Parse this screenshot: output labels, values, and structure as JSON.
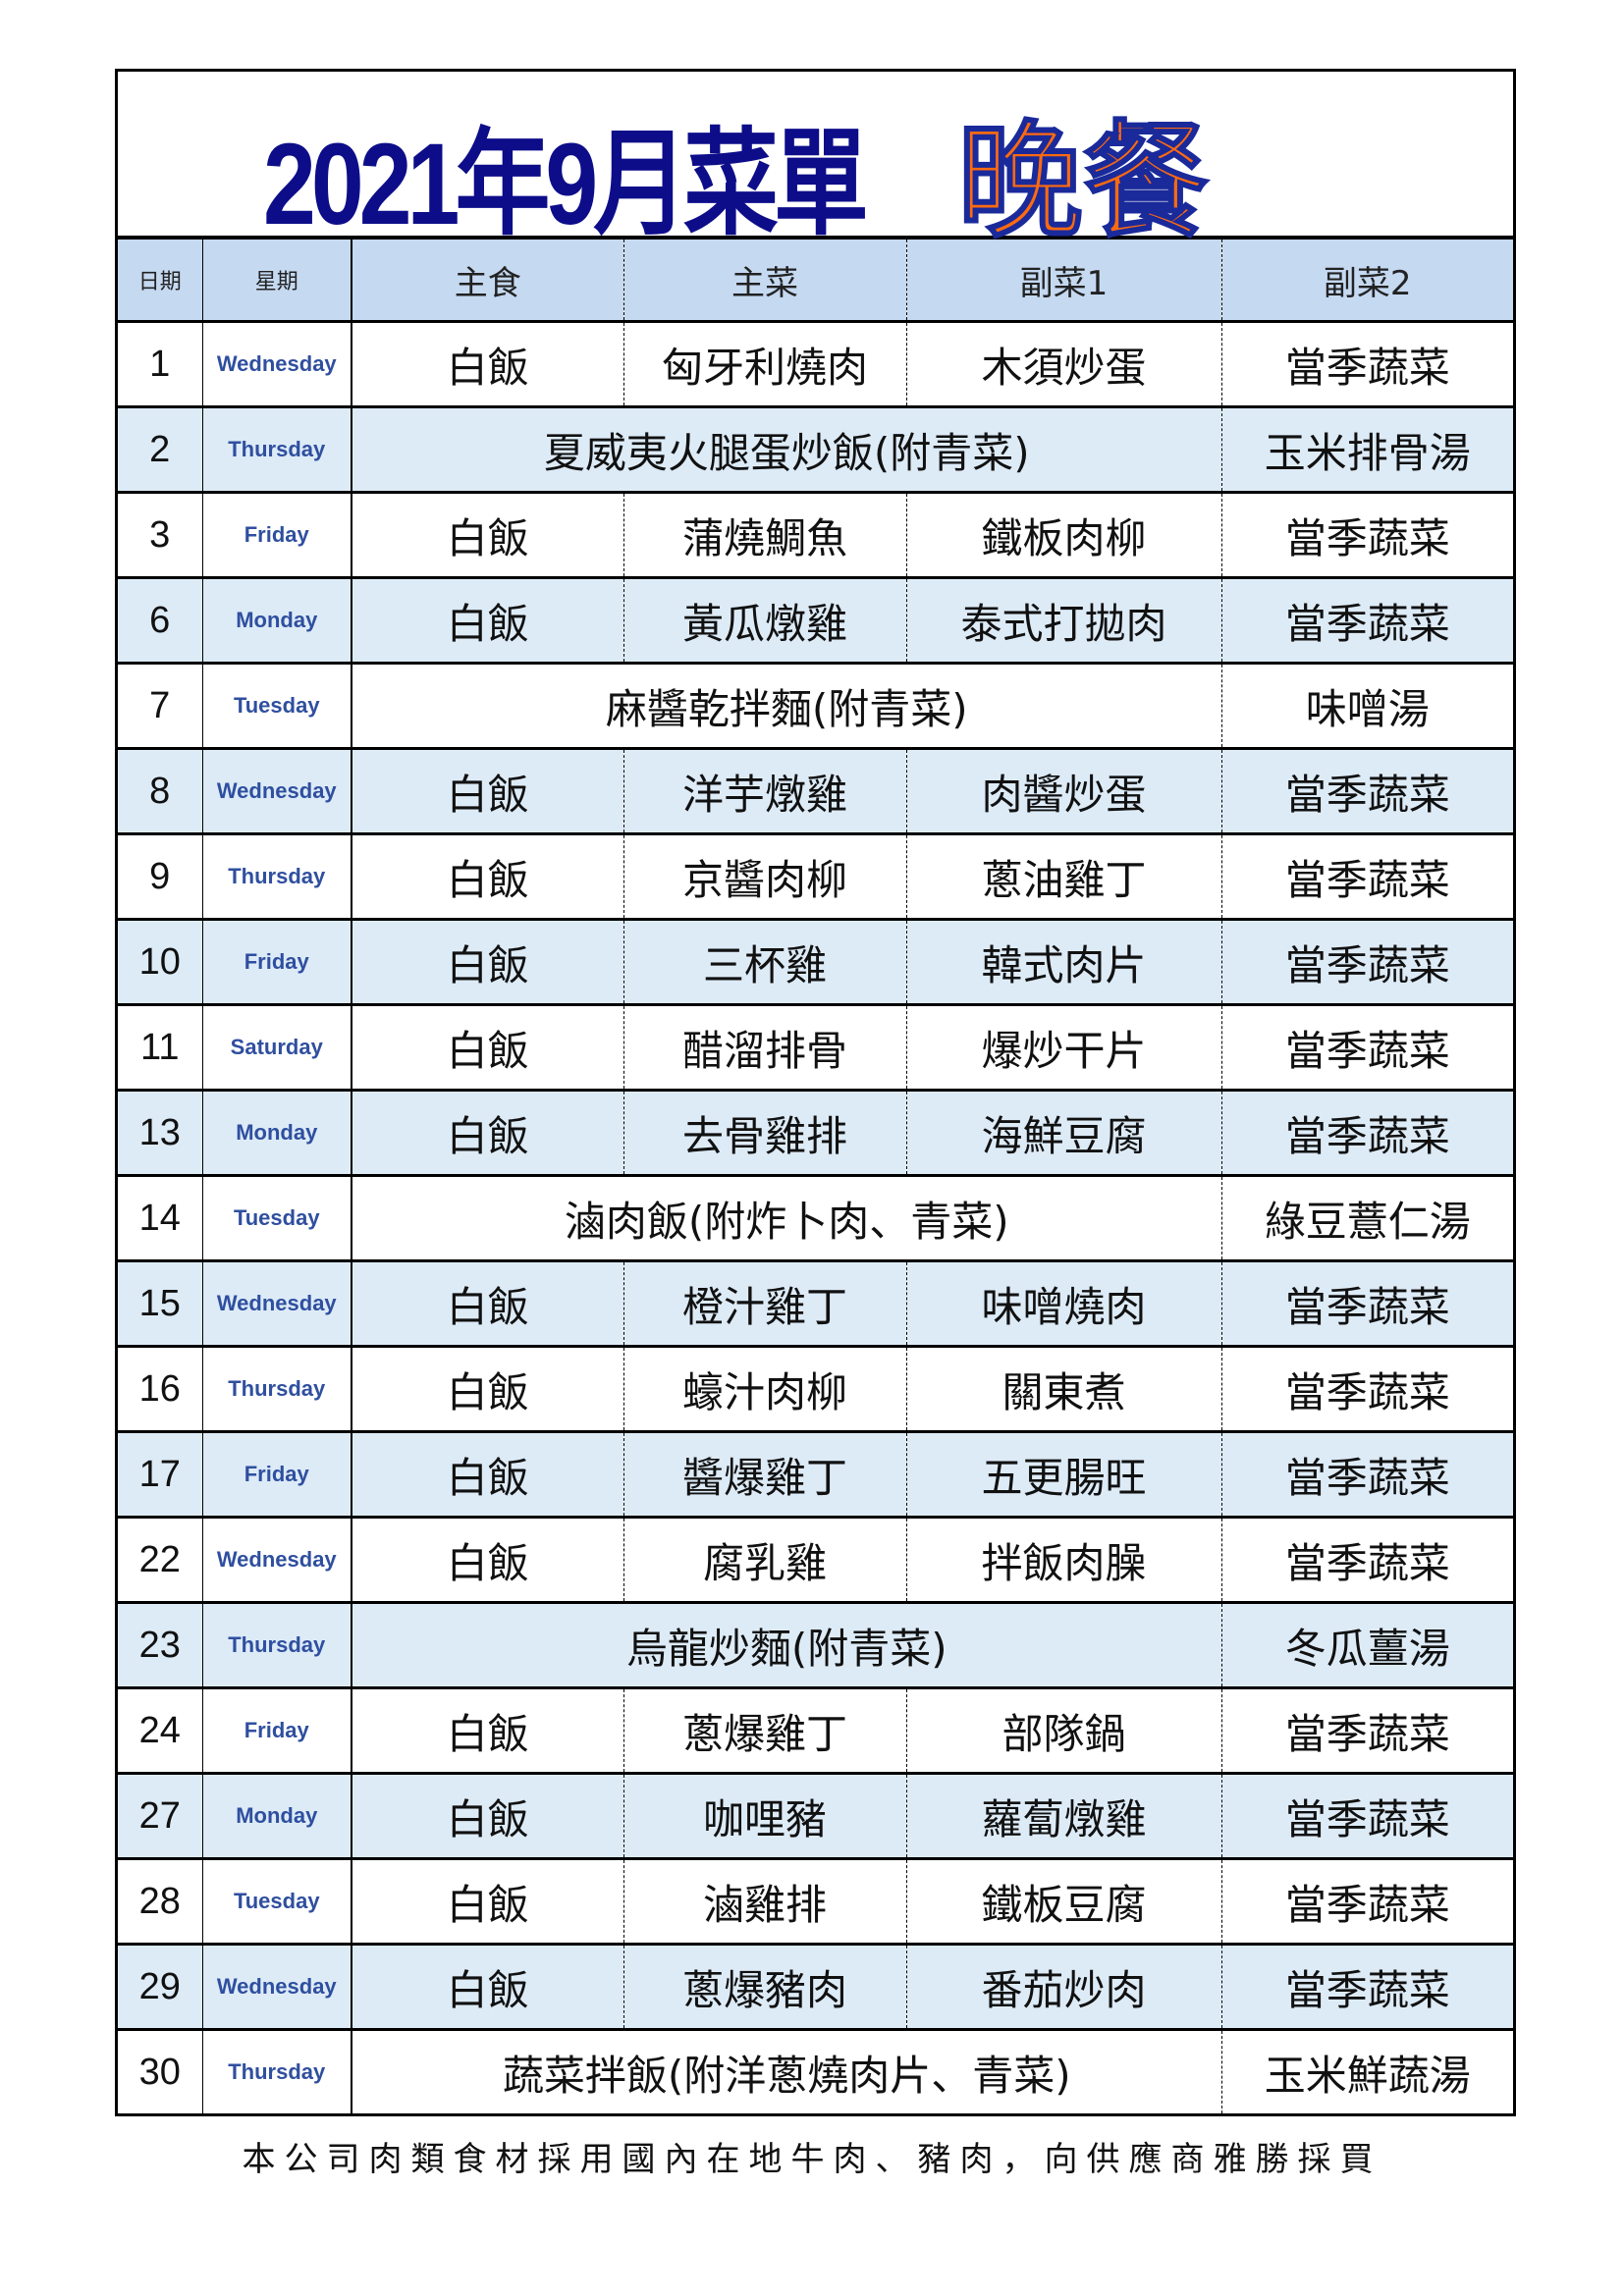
{
  "title": {
    "main": "2021年9月菜單",
    "meal": "晚餐"
  },
  "colors": {
    "title_blue": "#0d0d8a",
    "title_orange": "#ff6a10",
    "header_bg": "#c5d9f1",
    "alt_row_bg": "#ddebf7"
  },
  "header": {
    "date": "日期",
    "weekday": "星期",
    "staple": "主食",
    "main_dish": "主菜",
    "side1": "副菜1",
    "side2": "副菜2"
  },
  "rows": [
    {
      "date": "1",
      "weekday": "Wednesday",
      "staple": "白飯",
      "main_dish": "匈牙利燒肉",
      "side1": "木須炒蛋",
      "side2": "當季蔬菜"
    },
    {
      "date": "2",
      "weekday": "Thursday",
      "combined": "夏威夷火腿蛋炒飯(附青菜)",
      "side2": "玉米排骨湯"
    },
    {
      "date": "3",
      "weekday": "Friday",
      "staple": "白飯",
      "main_dish": "蒲燒鯛魚",
      "side1": "鐵板肉柳",
      "side2": "當季蔬菜"
    },
    {
      "date": "6",
      "weekday": "Monday",
      "staple": "白飯",
      "main_dish": "黃瓜燉雞",
      "side1": "泰式打拋肉",
      "side2": "當季蔬菜"
    },
    {
      "date": "7",
      "weekday": "Tuesday",
      "combined": "麻醬乾拌麵(附青菜)",
      "side2": "味噌湯"
    },
    {
      "date": "8",
      "weekday": "Wednesday",
      "staple": "白飯",
      "main_dish": "洋芋燉雞",
      "side1": "肉醬炒蛋",
      "side2": "當季蔬菜"
    },
    {
      "date": "9",
      "weekday": "Thursday",
      "staple": "白飯",
      "main_dish": "京醬肉柳",
      "side1": "蔥油雞丁",
      "side2": "當季蔬菜"
    },
    {
      "date": "10",
      "weekday": "Friday",
      "staple": "白飯",
      "main_dish": "三杯雞",
      "side1": "韓式肉片",
      "side2": "當季蔬菜"
    },
    {
      "date": "11",
      "weekday": "Saturday",
      "staple": "白飯",
      "main_dish": "醋溜排骨",
      "side1": "爆炒干片",
      "side2": "當季蔬菜"
    },
    {
      "date": "13",
      "weekday": "Monday",
      "staple": "白飯",
      "main_dish": "去骨雞排",
      "side1": "海鮮豆腐",
      "side2": "當季蔬菜"
    },
    {
      "date": "14",
      "weekday": "Tuesday",
      "combined": "滷肉飯(附炸卜肉、青菜)",
      "side2": "綠豆薏仁湯"
    },
    {
      "date": "15",
      "weekday": "Wednesday",
      "staple": "白飯",
      "main_dish": "橙汁雞丁",
      "side1": "味噌燒肉",
      "side2": "當季蔬菜"
    },
    {
      "date": "16",
      "weekday": "Thursday",
      "staple": "白飯",
      "main_dish": "蠔汁肉柳",
      "side1": "關東煮",
      "side2": "當季蔬菜"
    },
    {
      "date": "17",
      "weekday": "Friday",
      "staple": "白飯",
      "main_dish": "醬爆雞丁",
      "side1": "五更腸旺",
      "side2": "當季蔬菜"
    },
    {
      "date": "22",
      "weekday": "Wednesday",
      "staple": "白飯",
      "main_dish": "腐乳雞",
      "side1": "拌飯肉臊",
      "side2": "當季蔬菜"
    },
    {
      "date": "23",
      "weekday": "Thursday",
      "combined": "烏龍炒麵(附青菜)",
      "side2": "冬瓜薑湯"
    },
    {
      "date": "24",
      "weekday": "Friday",
      "staple": "白飯",
      "main_dish": "蔥爆雞丁",
      "side1": "部隊鍋",
      "side2": "當季蔬菜"
    },
    {
      "date": "27",
      "weekday": "Monday",
      "staple": "白飯",
      "main_dish": "咖哩豬",
      "side1": "蘿蔔燉雞",
      "side2": "當季蔬菜"
    },
    {
      "date": "28",
      "weekday": "Tuesday",
      "staple": "白飯",
      "main_dish": "滷雞排",
      "side1": "鐵板豆腐",
      "side2": "當季蔬菜"
    },
    {
      "date": "29",
      "weekday": "Wednesday",
      "staple": "白飯",
      "main_dish": "蔥爆豬肉",
      "side1": "番茄炒肉",
      "side2": "當季蔬菜"
    },
    {
      "date": "30",
      "weekday": "Thursday",
      "combined": "蔬菜拌飯(附洋蔥燒肉片、青菜)",
      "side2": "玉米鮮蔬湯"
    }
  ],
  "footer": "本公司肉類食材採用國內在地牛肉、豬肉，向供應商雅勝採買"
}
